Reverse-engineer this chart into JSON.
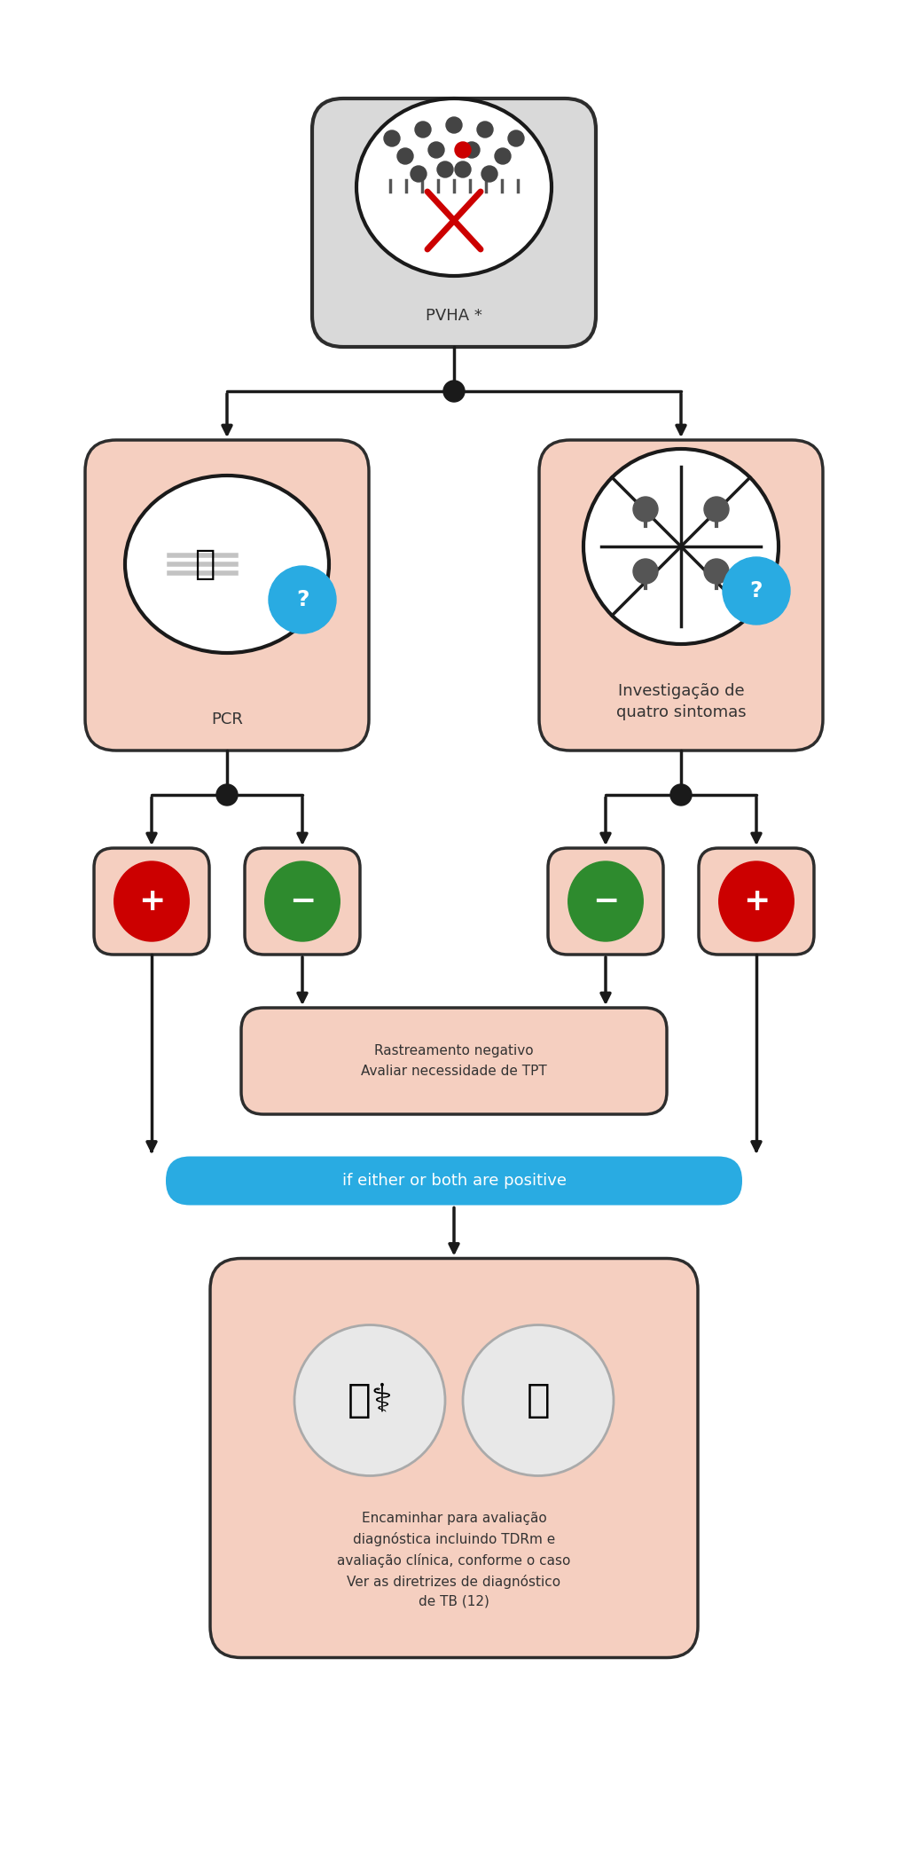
{
  "bg_color": "#ffffff",
  "box_salmon": "#f5cfc0",
  "box_gray": "#d9d9d9",
  "box_stroke": "#2d2d2d",
  "arrow_color": "#1a1a1a",
  "red_circle": "#cc0000",
  "green_circle": "#2e8b2e",
  "blue_circle": "#29abe2",
  "pvha_label": "PVHA *",
  "pcr_label": "PCR",
  "sintomas_label": "Investigação de\nquatro sintomas",
  "neg_box_label": "Rastreamento negativo\nAvaliar necessidade de TPT",
  "final_label": "Encaminhar para avaliação\ndiagnóstica incluindo TDRm e\navaliação clínica, conforme o caso\nVer as diretrizes de diagnóstico\nde TB (12)",
  "if_label": "if either or both are positive"
}
